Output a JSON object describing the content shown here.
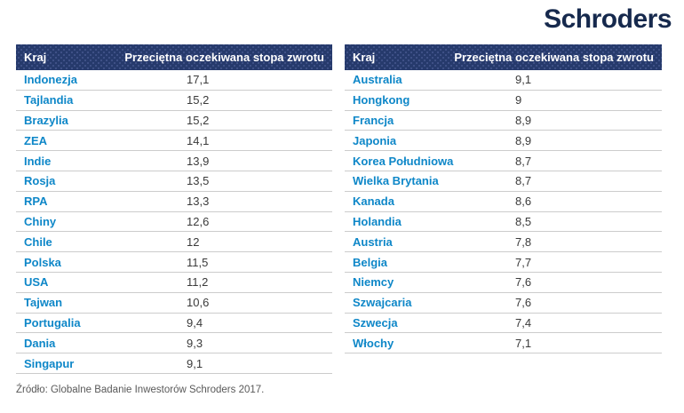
{
  "logo": {
    "text": "Schroders"
  },
  "chart_data": {
    "type": "table",
    "title": "",
    "columns": {
      "country": "Kraj",
      "value": "Przeciętna oczekiwana stopa zwrotu"
    },
    "left_table_rows": [
      {
        "country": "Indonezja",
        "value": "17,1",
        "value_num": 17.1
      },
      {
        "country": "Tajlandia",
        "value": "15,2",
        "value_num": 15.2
      },
      {
        "country": "Brazylia",
        "value": "15,2",
        "value_num": 15.2
      },
      {
        "country": "ZEA",
        "value": "14,1",
        "value_num": 14.1
      },
      {
        "country": "Indie",
        "value": "13,9",
        "value_num": 13.9
      },
      {
        "country": "Rosja",
        "value": "13,5",
        "value_num": 13.5
      },
      {
        "country": "RPA",
        "value": "13,3",
        "value_num": 13.3
      },
      {
        "country": "Chiny",
        "value": "12,6",
        "value_num": 12.6
      },
      {
        "country": "Chile",
        "value": "12",
        "value_num": 12
      },
      {
        "country": "Polska",
        "value": "11,5",
        "value_num": 11.5
      },
      {
        "country": "USA",
        "value": "11,2",
        "value_num": 11.2
      },
      {
        "country": "Tajwan",
        "value": "10,6",
        "value_num": 10.6
      },
      {
        "country": "Portugalia",
        "value": "9,4",
        "value_num": 9.4
      },
      {
        "country": "Dania",
        "value": "9,3",
        "value_num": 9.3
      },
      {
        "country": "Singapur",
        "value": "9,1",
        "value_num": 9.1
      }
    ],
    "right_table_rows": [
      {
        "country": "Australia",
        "value": "9,1",
        "value_num": 9.1
      },
      {
        "country": "Hongkong",
        "value": "9",
        "value_num": 9
      },
      {
        "country": "Francja",
        "value": "8,9",
        "value_num": 8.9
      },
      {
        "country": "Japonia",
        "value": "8,9",
        "value_num": 8.9
      },
      {
        "country": "Korea Południowa",
        "value": "8,7",
        "value_num": 8.7
      },
      {
        "country": "Wielka Brytania",
        "value": "8,7",
        "value_num": 8.7
      },
      {
        "country": "Kanada",
        "value": "8,6",
        "value_num": 8.6
      },
      {
        "country": "Holandia",
        "value": "8,5",
        "value_num": 8.5
      },
      {
        "country": "Austria",
        "value": "7,8",
        "value_num": 7.8
      },
      {
        "country": "Belgia",
        "value": "7,7",
        "value_num": 7.7
      },
      {
        "country": "Niemcy",
        "value": "7,6",
        "value_num": 7.6
      },
      {
        "country": "Szwajcaria",
        "value": "7,6",
        "value_num": 7.6
      },
      {
        "country": "Szwecja",
        "value": "7,4",
        "value_num": 7.4
      },
      {
        "country": "Włochy",
        "value": "7,1",
        "value_num": 7.1
      }
    ],
    "source": "Źródło: Globalne Badanie Inwestorów Schroders 2017."
  },
  "footer": {
    "source": "Źródło: Globalne Badanie Inwestorów Schroders 2017."
  },
  "colors": {
    "header_bg": "#263a6c",
    "header_dot": "#42538a",
    "country_blue": "#0e87c8",
    "value_gray": "#3a3a3a",
    "divider": "#cccccc",
    "logo_navy": "#16294d",
    "footer_gray": "#595959",
    "page_bg": "#ffffff"
  }
}
